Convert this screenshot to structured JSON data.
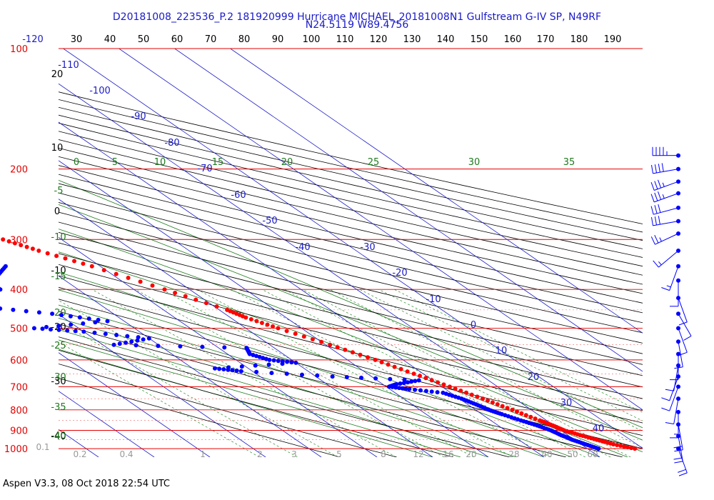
{
  "title_line1": "D20181008_223536_P.2 181920999 Hurricane MICHAEL_20181008N1 Gulfstream G-IV SP, N49RF",
  "title_line2": "N24.5119 W89.4756",
  "footer": "Aspen V3.3, 08 Oct 2018  22:54 UTC",
  "colors": {
    "isobar": "#e60000",
    "isotherm": "#1a1ac8",
    "dry_adiabat": "#000000",
    "moist_adiabat": "#1f7a1f",
    "mixing_ratio": "#2e8b2e",
    "temperature": "#ff0000",
    "dewpoint": "#0000ff",
    "wind": "#0000ff"
  },
  "chart_data": {
    "type": "skew-t",
    "pressure_ticks": [
      "100",
      "200",
      "300",
      "400",
      "500",
      "600",
      "700",
      "800",
      "900",
      "1000"
    ],
    "top_isotherm_labels": [
      "-120",
      "30",
      "40",
      "50",
      "60",
      "70",
      "80",
      "90",
      "100",
      "110",
      "120",
      "130",
      "140",
      "150",
      "160",
      "170",
      "180",
      "190"
    ],
    "isotherm_labels": [
      "-110",
      "-100",
      "-90",
      "-80",
      "-70",
      "-60",
      "-50",
      "-40",
      "-30",
      "-20",
      "-10",
      "0",
      "10",
      "20",
      "30",
      "40"
    ],
    "dry_adiabat_labels": [
      "20",
      "10",
      "0",
      "-10",
      "-20",
      "-30",
      "-40"
    ],
    "moist_adiabat_labels": [
      "0",
      "5",
      "10",
      "15",
      "20",
      "25",
      "30",
      "35"
    ],
    "moist_adiabat_left_labels": [
      "-5",
      "-10",
      "-15",
      "-20",
      "-25",
      "-30",
      "-35",
      "-40"
    ],
    "mixing_ratio_labels": [
      "0.1",
      "0.2",
      "0.4",
      "1",
      "2",
      "3",
      "5",
      "8",
      "12",
      "16",
      "20",
      "28",
      "40",
      "50",
      "60"
    ],
    "temperature_profile": [
      {
        "p": 1000,
        "t": 28.5
      },
      {
        "p": 975,
        "t": 25.8
      },
      {
        "p": 950,
        "t": 24.0
      },
      {
        "p": 925,
        "t": 22.2
      },
      {
        "p": 900,
        "t": 20.6
      },
      {
        "p": 875,
        "t": 19.8
      },
      {
        "p": 850,
        "t": 18.8
      },
      {
        "p": 800,
        "t": 16.6
      },
      {
        "p": 750,
        "t": 14.2
      },
      {
        "p": 700,
        "t": 11.4
      },
      {
        "p": 650,
        "t": 8.3
      },
      {
        "p": 600,
        "t": 5.0
      },
      {
        "p": 550,
        "t": 0.8
      },
      {
        "p": 500,
        "t": -4.2
      },
      {
        "p": 470,
        "t": -7.2
      },
      {
        "p": 450,
        "t": -8.6
      },
      {
        "p": 400,
        "t": -14.5
      },
      {
        "p": 350,
        "t": -21.5
      },
      {
        "p": 320,
        "t": -27.0
      },
      {
        "p": 300,
        "t": -30.5
      },
      {
        "p": 280,
        "t": -33.5
      },
      {
        "p": 250,
        "t": -39.0
      },
      {
        "p": 225,
        "t": -44.5
      },
      {
        "p": 200,
        "t": -50.0
      },
      {
        "p": 185,
        "t": -54.0
      },
      {
        "p": 175,
        "t": -56.5
      },
      {
        "p": 168,
        "t": -58.0
      },
      {
        "p": 160,
        "t": -60.0
      }
    ],
    "dewpoint_profile": [
      {
        "p": 1000,
        "td": 22.0
      },
      {
        "p": 975,
        "td": 20.8
      },
      {
        "p": 950,
        "td": 19.6
      },
      {
        "p": 925,
        "td": 18.8
      },
      {
        "p": 900,
        "td": 18.2
      },
      {
        "p": 875,
        "td": 17.0
      },
      {
        "p": 850,
        "td": 15.4
      },
      {
        "p": 820,
        "td": 13.6
      },
      {
        "p": 800,
        "td": 12.4
      },
      {
        "p": 775,
        "td": 11.5
      },
      {
        "p": 750,
        "td": 10.4
      },
      {
        "p": 725,
        "td": 8.6
      },
      {
        "p": 710,
        "td": 3.5
      },
      {
        "p": 700,
        "td": 0.5
      },
      {
        "p": 690,
        "td": 2.5
      },
      {
        "p": 675,
        "td": 7.5
      },
      {
        "p": 660,
        "td": -7.0
      },
      {
        "p": 640,
        "td": -22.0
      },
      {
        "p": 630,
        "td": -26.0
      },
      {
        "p": 610,
        "td": -10.0
      },
      {
        "p": 600,
        "td": -14.0
      },
      {
        "p": 580,
        "td": -16.0
      },
      {
        "p": 560,
        "td": -15.0
      },
      {
        "p": 550,
        "td": -38.0
      },
      {
        "p": 530,
        "td": -30.0
      },
      {
        "p": 510,
        "td": -40.0
      },
      {
        "p": 500,
        "td": -48.0
      },
      {
        "p": 480,
        "td": -33.0
      },
      {
        "p": 460,
        "td": -41.0
      },
      {
        "p": 440,
        "td": -53.0
      },
      {
        "p": 420,
        "td": -53.0
      },
      {
        "p": 405,
        "td": -49.0
      },
      {
        "p": 400,
        "td": -44.0
      },
      {
        "p": 385,
        "td": -44.0
      },
      {
        "p": 370,
        "td": -41.0
      },
      {
        "p": 350,
        "td": -37.0
      },
      {
        "p": 335,
        "td": -47.0
      },
      {
        "p": 320,
        "td": -49.0
      },
      {
        "p": 300,
        "td": -51.0
      },
      {
        "p": 285,
        "td": -56.0
      },
      {
        "p": 270,
        "td": -58.0
      },
      {
        "p": 255,
        "td": -63.0
      },
      {
        "p": 240,
        "td": -66.0
      },
      {
        "p": 225,
        "td": -70.0
      },
      {
        "p": 210,
        "td": -72.0
      }
    ],
    "wind_barbs_pressure": [
      185,
      200,
      215,
      230,
      250,
      270,
      290,
      320,
      350,
      380,
      420,
      460,
      500,
      540,
      580,
      620,
      660,
      700,
      750,
      810,
      870,
      930,
      1000
    ],
    "wind_barbs_direction_deg": [
      270,
      260,
      250,
      250,
      255,
      260,
      245,
      230,
      200,
      180,
      160,
      150,
      160,
      170,
      180,
      190,
      200,
      200,
      190,
      180,
      170,
      170,
      160
    ],
    "wind_barbs_speed_kt": [
      45,
      40,
      35,
      35,
      30,
      30,
      25,
      15,
      15,
      10,
      10,
      10,
      10,
      10,
      10,
      10,
      10,
      10,
      10,
      15,
      20,
      20,
      20
    ]
  }
}
